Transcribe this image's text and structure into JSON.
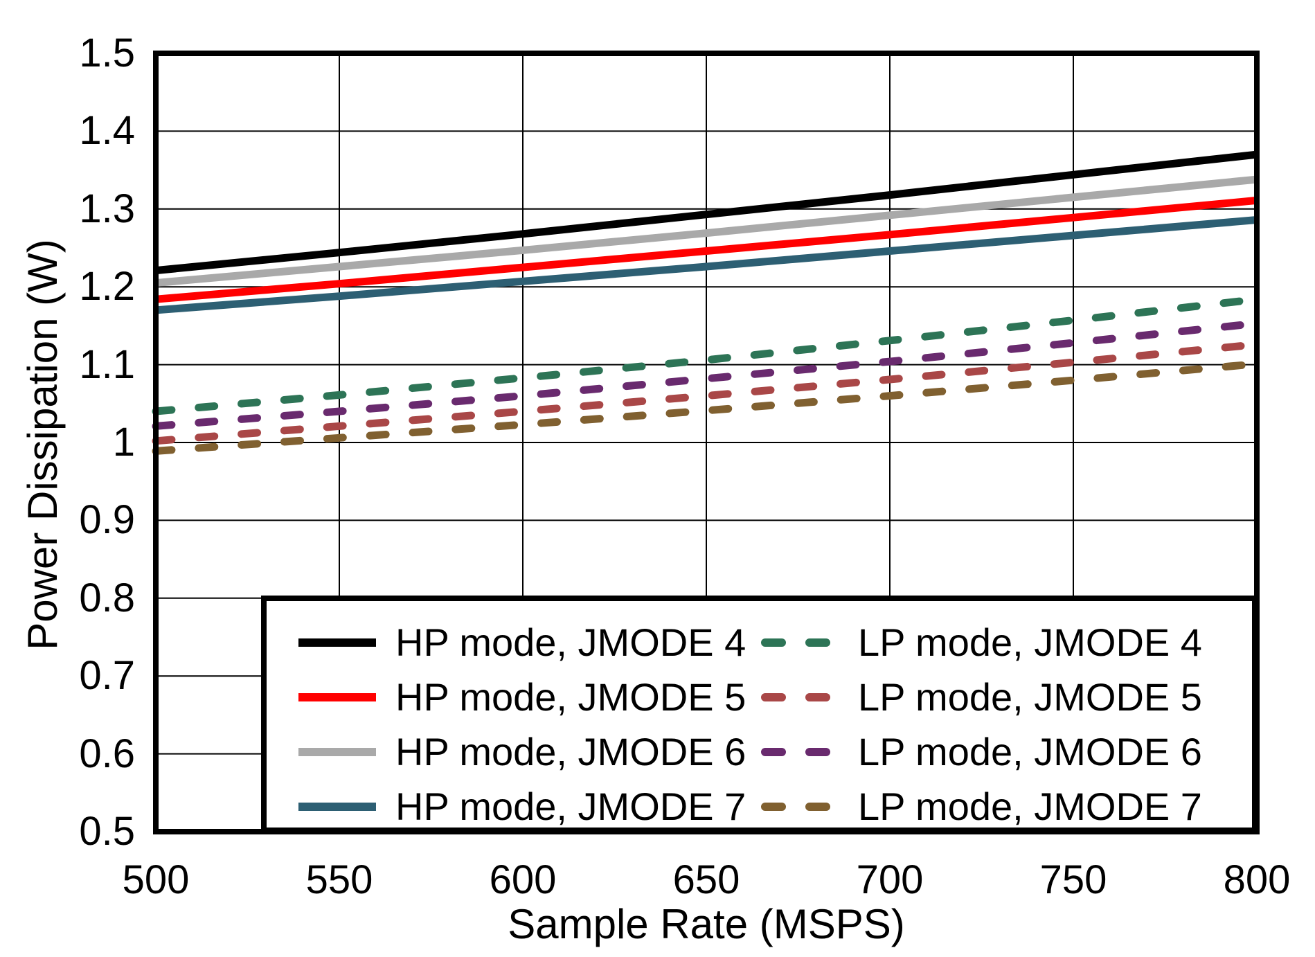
{
  "chart_data": {
    "type": "line",
    "title": "",
    "xlabel": "Sample Rate (MSPS)",
    "ylabel": "Power Dissipation (W)",
    "xlim": [
      500,
      800
    ],
    "ylim": [
      0.5,
      1.5
    ],
    "x_ticks": [
      500,
      550,
      600,
      650,
      700,
      750,
      800
    ],
    "x_tick_labels": [
      "500",
      "550",
      "600",
      "650",
      "700",
      "750",
      "800"
    ],
    "y_ticks": [
      0.5,
      0.6,
      0.7,
      0.8,
      0.9,
      1.0,
      1.1,
      1.2,
      1.3,
      1.4,
      1.5
    ],
    "y_tick_labels": [
      "0.5",
      "0.6",
      "0.7",
      "0.8",
      "0.9",
      "1",
      "1.1",
      "1.2",
      "1.3",
      "1.4",
      "1.5"
    ],
    "grid": "on",
    "legend_position": "inside lower right",
    "x": [
      500,
      550,
      600,
      650,
      700,
      750,
      800
    ],
    "series": [
      {
        "name": "HP mode, JMODE 4",
        "mode": "HP",
        "jmode": 4,
        "line_style": "solid",
        "color": "#000000",
        "values": [
          1.221,
          1.244,
          1.268,
          1.293,
          1.318,
          1.344,
          1.37
        ]
      },
      {
        "name": "HP mode, JMODE 5",
        "mode": "HP",
        "jmode": 5,
        "line_style": "solid",
        "color": "#ff0000",
        "values": [
          1.184,
          1.204,
          1.225,
          1.246,
          1.267,
          1.289,
          1.311
        ]
      },
      {
        "name": "HP mode, JMODE 6",
        "mode": "HP",
        "jmode": 6,
        "line_style": "solid",
        "color": "#a9a9a9",
        "values": [
          1.205,
          1.226,
          1.247,
          1.269,
          1.292,
          1.315,
          1.338
        ]
      },
      {
        "name": "HP mode, JMODE 7",
        "mode": "HP",
        "jmode": 7,
        "line_style": "solid",
        "color": "#2d5f73",
        "values": [
          1.17,
          1.188,
          1.207,
          1.226,
          1.246,
          1.266,
          1.286
        ]
      },
      {
        "name": "LP mode, JMODE 4",
        "mode": "LP",
        "jmode": 4,
        "line_style": "dashed",
        "color": "#2d7456",
        "values": [
          1.04,
          1.061,
          1.083,
          1.106,
          1.131,
          1.157,
          1.184
        ]
      },
      {
        "name": "LP mode, JMODE 5",
        "mode": "LP",
        "jmode": 5,
        "line_style": "dashed",
        "color": "#a94747",
        "values": [
          1.002,
          1.021,
          1.04,
          1.06,
          1.081,
          1.103,
          1.126
        ]
      },
      {
        "name": "LP mode, JMODE 6",
        "mode": "LP",
        "jmode": 6,
        "line_style": "dashed",
        "color": "#692a6e",
        "values": [
          1.021,
          1.04,
          1.06,
          1.082,
          1.104,
          1.128,
          1.153
        ]
      },
      {
        "name": "LP mode, JMODE 7",
        "mode": "LP",
        "jmode": 7,
        "line_style": "dashed",
        "color": "#806030",
        "values": [
          0.989,
          1.006,
          1.023,
          1.041,
          1.06,
          1.08,
          1.101
        ]
      }
    ]
  },
  "legend": {
    "columns": [
      {
        "entries": [
          {
            "label": "HP mode, JMODE 4",
            "color": "#000000",
            "line_style": "solid"
          },
          {
            "label": "HP mode, JMODE 5",
            "color": "#ff0000",
            "line_style": "solid"
          },
          {
            "label": "HP mode, JMODE 6",
            "color": "#a9a9a9",
            "line_style": "solid"
          },
          {
            "label": "HP mode, JMODE 7",
            "color": "#2d5f73",
            "line_style": "solid"
          }
        ]
      },
      {
        "entries": [
          {
            "label": "LP mode, JMODE 4",
            "color": "#2d7456",
            "line_style": "dashed"
          },
          {
            "label": "LP mode, JMODE 5",
            "color": "#a94747",
            "line_style": "dashed"
          },
          {
            "label": "LP mode, JMODE 6",
            "color": "#692a6e",
            "line_style": "dashed"
          },
          {
            "label": "LP mode, JMODE 7",
            "color": "#806030",
            "line_style": "dashed"
          }
        ]
      }
    ]
  }
}
